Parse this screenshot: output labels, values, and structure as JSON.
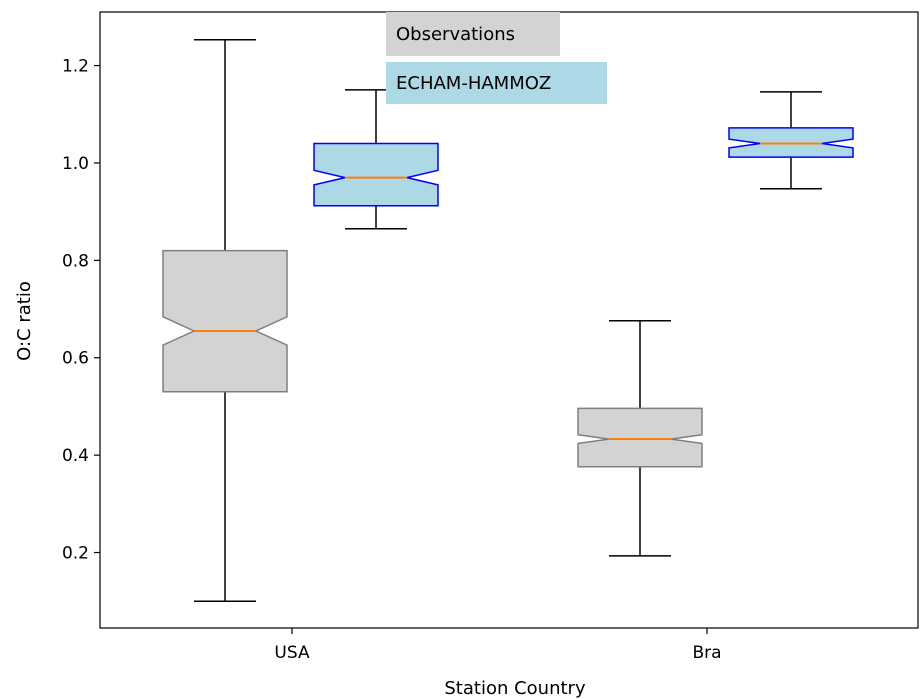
{
  "chart_data": {
    "type": "boxplot",
    "notched": true,
    "xlabel": "Station Country",
    "ylabel": "O:C ratio",
    "categories": [
      "USA",
      "Bra"
    ],
    "ylim": [
      0.045,
      1.31
    ],
    "yticks": [
      0.2,
      0.4,
      0.6,
      0.8,
      1.0,
      1.2
    ],
    "ytick_labels": [
      "0.2",
      "0.4",
      "0.6",
      "0.8",
      "1.0",
      "1.2"
    ],
    "legend_position": "top-center",
    "series": [
      {
        "name": "Observations",
        "face_color": "#d3d3d3",
        "edge_color": "#7f7f7f",
        "boxes": [
          {
            "category": "USA",
            "whisker_low": 0.1,
            "q1": 0.53,
            "notch_low": 0.626,
            "median": 0.655,
            "notch_high": 0.684,
            "q3": 0.82,
            "whisker_high": 1.253
          },
          {
            "category": "Bra",
            "whisker_low": 0.193,
            "q1": 0.376,
            "notch_low": 0.424,
            "median": 0.433,
            "notch_high": 0.442,
            "q3": 0.496,
            "whisker_high": 0.676
          }
        ]
      },
      {
        "name": "ECHAM-HAMMOZ",
        "face_color": "#add8e6",
        "edge_color": "#0000ff",
        "boxes": [
          {
            "category": "USA",
            "whisker_low": 0.865,
            "q1": 0.912,
            "notch_low": 0.955,
            "median": 0.97,
            "notch_high": 0.985,
            "q3": 1.04,
            "whisker_high": 1.15
          },
          {
            "category": "Bra",
            "whisker_low": 0.947,
            "q1": 1.012,
            "notch_low": 1.031,
            "median": 1.04,
            "notch_high": 1.049,
            "q3": 1.072,
            "whisker_high": 1.146
          }
        ]
      }
    ],
    "median_color": "#ff7f0e"
  }
}
